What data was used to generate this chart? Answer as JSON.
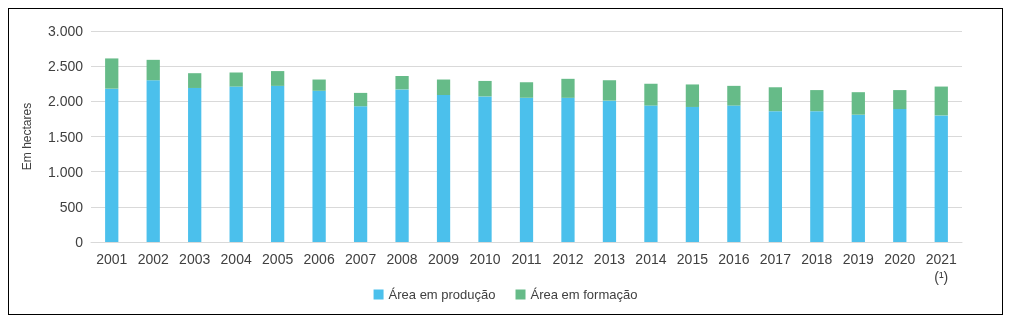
{
  "chart_data": {
    "type": "bar",
    "stacked": true,
    "ylabel": "Em hectares",
    "categories": [
      "2001",
      "2002",
      "2003",
      "2004",
      "2005",
      "2006",
      "2007",
      "2008",
      "2009",
      "2010",
      "2011",
      "2012",
      "2013",
      "2014",
      "2015",
      "2016",
      "2017",
      "2018",
      "2019",
      "2020",
      "2021\n(¹)"
    ],
    "series": [
      {
        "name": "Área em produção",
        "color": "#4bc0ec",
        "values": [
          2180,
          2300,
          2190,
          2210,
          2220,
          2150,
          1930,
          2170,
          2090,
          2070,
          2050,
          2050,
          2010,
          1940,
          1920,
          1940,
          1860,
          1860,
          1810,
          1890,
          1800
        ]
      },
      {
        "name": "Área em formação",
        "color": "#66bb88",
        "values": [
          430,
          290,
          210,
          200,
          210,
          160,
          190,
          190,
          220,
          220,
          220,
          270,
          290,
          310,
          320,
          280,
          340,
          300,
          320,
          270,
          410
        ]
      }
    ],
    "ylim": [
      0,
      3000
    ],
    "yticks": [
      {
        "value": 0,
        "label": "0"
      },
      {
        "value": 500,
        "label": "500"
      },
      {
        "value": 1000,
        "label": "1.000"
      },
      {
        "value": 1500,
        "label": "1.500"
      },
      {
        "value": 2000,
        "label": "2.000"
      },
      {
        "value": 2500,
        "label": "2.500"
      },
      {
        "value": 3000,
        "label": "3.000"
      }
    ],
    "grid": "y",
    "legend": "bottom"
  }
}
